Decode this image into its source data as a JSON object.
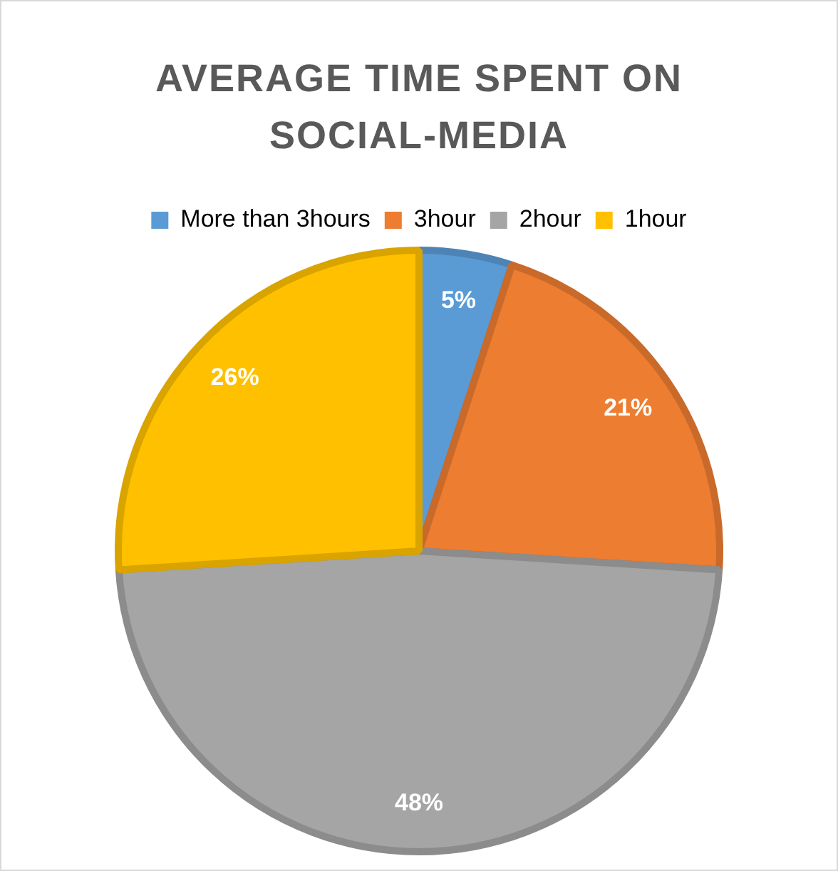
{
  "chart_data": {
    "type": "pie",
    "title": "AVERAGE TIME SPENT ON SOCIAL-MEDIA",
    "categories": [
      "More than 3hours",
      "3hour",
      "2hour",
      "1hour"
    ],
    "values": [
      5,
      21,
      48,
      26
    ],
    "colors": [
      "#5b9bd5",
      "#ed7d31",
      "#a5a5a5",
      "#ffc000"
    ],
    "value_labels": [
      "5%",
      "21%",
      "48%",
      "26%"
    ],
    "legend": "top"
  }
}
